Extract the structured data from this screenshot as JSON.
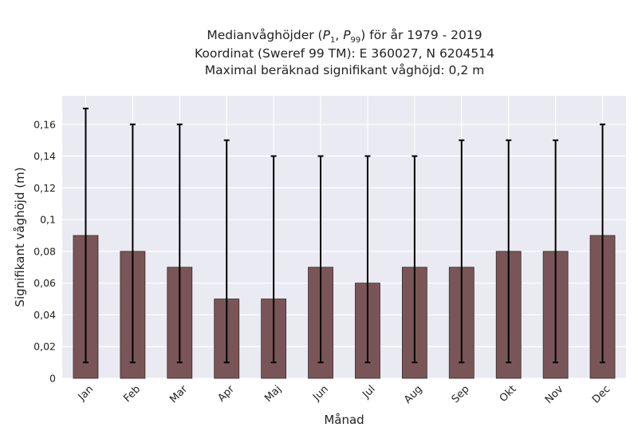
{
  "chart_data": {
    "type": "bar",
    "title": [
      "Medianvåghöjder (P1, P99) för år 1979 - 2019",
      "Koordinat (Sweref 99 TM): E 360027, N 6204514",
      "Maximal beräknad signifikant våghöjd: 0,2 m"
    ],
    "title_parts": {
      "line1_pre": "Medianvåghöjder (",
      "p1_base": "P",
      "p1_sub": "1",
      "p1_sep": ", ",
      "p99_base": "P",
      "p99_sub": "99",
      "line1_post": ") för år 1979 - 2019",
      "line2": "Koordinat (Sweref 99 TM): E 360027, N 6204514",
      "line3": "Maximal beräknad signifikant våghöjd: 0,2 m"
    },
    "xlabel": "Månad",
    "ylabel": "Signifikant våghöjd (m)",
    "categories": [
      "Jan",
      "Feb",
      "Mar",
      "Apr",
      "Maj",
      "Jun",
      "Jul",
      "Aug",
      "Sep",
      "Okt",
      "Nov",
      "Dec"
    ],
    "values": [
      0.09,
      0.08,
      0.07,
      0.05,
      0.05,
      0.07,
      0.06,
      0.07,
      0.07,
      0.08,
      0.08,
      0.09
    ],
    "p1": [
      0.01,
      0.01,
      0.01,
      0.01,
      0.01,
      0.01,
      0.01,
      0.01,
      0.01,
      0.01,
      0.01,
      0.01
    ],
    "p99": [
      0.17,
      0.16,
      0.16,
      0.15,
      0.14,
      0.14,
      0.14,
      0.14,
      0.15,
      0.15,
      0.15,
      0.16
    ],
    "ylim": [
      0,
      0.178
    ],
    "yticks": [
      0,
      0.02,
      0.04,
      0.06,
      0.08,
      0.1,
      0.12,
      0.14,
      0.16
    ],
    "ytick_labels": [
      "0",
      "0,02",
      "0,04",
      "0,06",
      "0,08",
      "0,1",
      "0,12",
      "0,14",
      "0,16"
    ],
    "grid": true,
    "colors": {
      "bar": "#7a5557",
      "bar_edge": "#3a2a2a",
      "background": "#eaeaf2",
      "grid": "#ffffff",
      "errorbar": "#000000"
    }
  }
}
